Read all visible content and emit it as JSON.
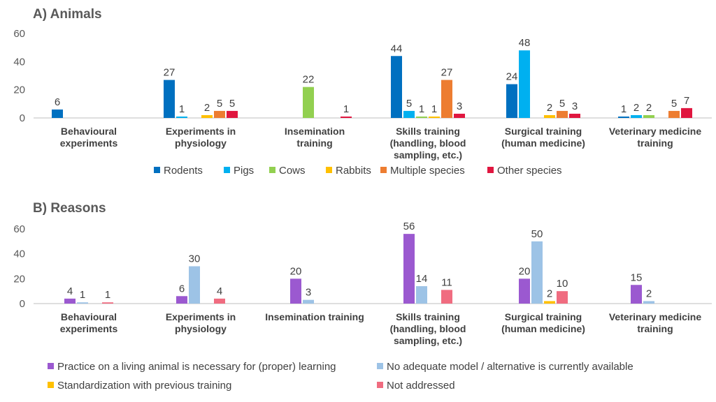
{
  "chart_data": [
    {
      "type": "bar",
      "title": "A) Animals",
      "ylim": [
        0,
        60
      ],
      "yticks": [
        0,
        20,
        40,
        60
      ],
      "grid": false,
      "legend_position": "bottom",
      "categories": [
        [
          "Behavioural",
          "experiments"
        ],
        [
          "Experiments in",
          "physiology"
        ],
        [
          "Insemination",
          "training"
        ],
        [
          "Skills training",
          "(handling, blood",
          "sampling, etc.)"
        ],
        [
          "Surgical training",
          "(human medicine)"
        ],
        [
          "Veterinary medicine",
          "training"
        ]
      ],
      "series": [
        {
          "name": "Rodents",
          "color": "#0070C0",
          "values": [
            6,
            27,
            null,
            44,
            24,
            1
          ]
        },
        {
          "name": "Pigs",
          "color": "#00B0F0",
          "values": [
            null,
            1,
            null,
            5,
            48,
            2
          ]
        },
        {
          "name": "Cows",
          "color": "#92D050",
          "values": [
            null,
            null,
            22,
            1,
            null,
            2
          ]
        },
        {
          "name": "Rabbits",
          "color": "#FFC000",
          "values": [
            null,
            2,
            null,
            1,
            2,
            null
          ]
        },
        {
          "name": "Multiple species",
          "color": "#ED7D31",
          "values": [
            null,
            5,
            null,
            27,
            5,
            5
          ]
        },
        {
          "name": "Other species",
          "color": "#E0163F",
          "values": [
            null,
            5,
            1,
            3,
            3,
            7
          ]
        }
      ]
    },
    {
      "type": "bar",
      "title": "B) Reasons",
      "ylim": [
        0,
        60
      ],
      "yticks": [
        0,
        20,
        40,
        60
      ],
      "grid": false,
      "legend_position": "bottom",
      "categories": [
        [
          "Behavioural",
          "experiments"
        ],
        [
          "Experiments in",
          "physiology"
        ],
        [
          "Insemination training"
        ],
        [
          "Skills training",
          "(handling, blood",
          "sampling, etc.)"
        ],
        [
          "Surgical training",
          "(human medicine)"
        ],
        [
          "Veterinary medicine",
          "training"
        ]
      ],
      "series": [
        {
          "name": "Practice on a living animal is necessary for (proper) learning",
          "color": "#9B59D0",
          "values": [
            4,
            6,
            20,
            56,
            20,
            15
          ]
        },
        {
          "name": "No adequate model / alternative is currently available",
          "color": "#9DC3E6",
          "values": [
            1,
            30,
            3,
            14,
            50,
            2
          ]
        },
        {
          "name": "Standardization with previous training",
          "color": "#FFC000",
          "values": [
            null,
            null,
            null,
            null,
            2,
            null
          ]
        },
        {
          "name": "Not addressed",
          "color": "#F06C80",
          "values": [
            1,
            4,
            null,
            11,
            10,
            null
          ]
        }
      ]
    }
  ]
}
